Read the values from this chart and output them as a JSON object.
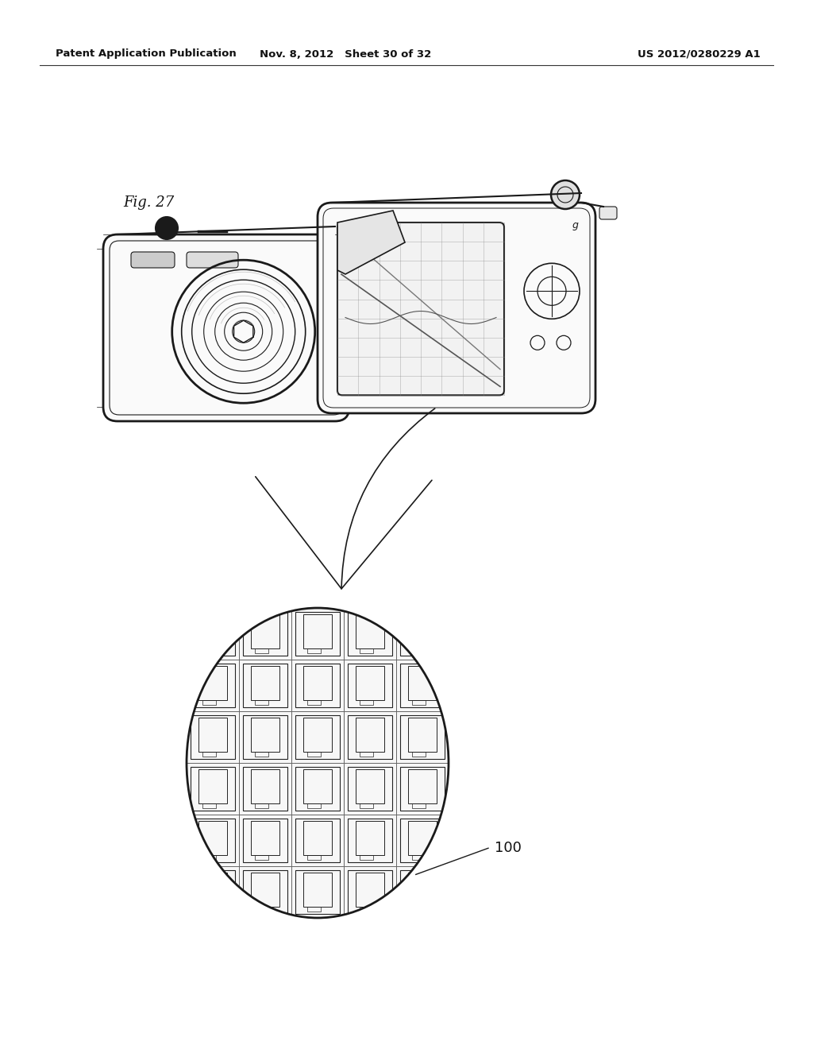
{
  "bg_color": "#ffffff",
  "header_left": "Patent Application Publication",
  "header_mid": "Nov. 8, 2012   Sheet 30 of 32",
  "header_right": "US 2012/0280229 A1",
  "fig_label": "Fig. 27",
  "label_100": "100",
  "fig_w": 10.24,
  "fig_h": 13.2,
  "dpi": 100
}
